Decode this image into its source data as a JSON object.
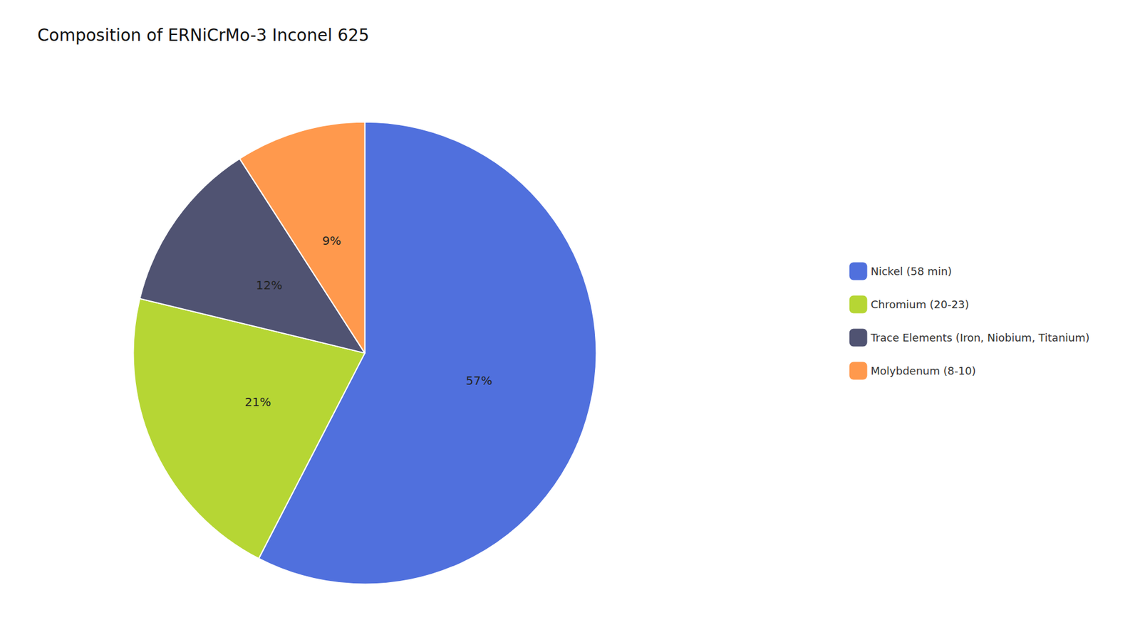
{
  "chart_data": {
    "type": "pie",
    "title": "Composition of ERNiCrMo-3 Inconel 625",
    "categories": [
      "Nickel (58 min)",
      "Chromium (20-23)",
      "Trace Elements (Iron, Niobium, Titanium)",
      "Molybdenum (8-10)"
    ],
    "values": [
      57,
      21,
      12,
      9
    ],
    "value_labels": [
      "57%",
      "21%",
      "12%",
      "9%"
    ],
    "data_labels": true,
    "legend": "right"
  }
}
